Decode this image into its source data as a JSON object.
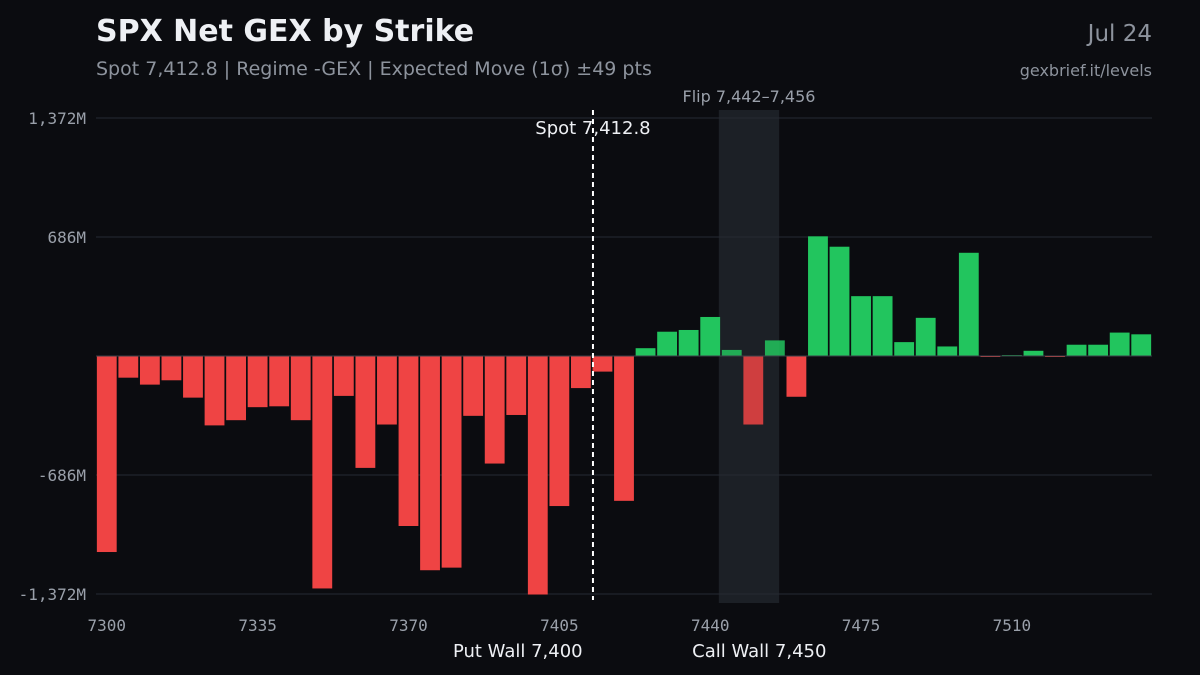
{
  "header": {
    "title": "SPX Net GEX by Strike",
    "subtitle": "Spot 7,412.8 | Regime -GEX | Expected Move (1σ) ±49 pts",
    "date": "Jul 24",
    "source": "gexbrief.it/levels"
  },
  "colors": {
    "positive": "#22c55e",
    "negative": "#ef4444",
    "grid": "#262a33",
    "flip_band": "#1c2026",
    "text": "#9aa0aa"
  },
  "chart_data": {
    "type": "bar",
    "title": "SPX Net GEX by Strike",
    "xlabel": "",
    "ylabel": "",
    "x_ticks": [
      "7300",
      "7335",
      "7370",
      "7405",
      "7440",
      "7475",
      "7510"
    ],
    "y_ticks": [
      "1,372M",
      "686M",
      "-686M",
      "-1,372M"
    ],
    "ylim": [
      -1372,
      1372
    ],
    "xlim": [
      7297.5,
      7542.5
    ],
    "strikes": [
      7300,
      7305,
      7310,
      7315,
      7320,
      7325,
      7330,
      7335,
      7340,
      7345,
      7350,
      7355,
      7360,
      7365,
      7370,
      7375,
      7380,
      7385,
      7390,
      7395,
      7400,
      7405,
      7410,
      7415,
      7420,
      7425,
      7430,
      7435,
      7440,
      7445,
      7450,
      7455,
      7460,
      7465,
      7470,
      7475,
      7480,
      7485,
      7490,
      7495,
      7500,
      7505,
      7510,
      7515,
      7520,
      7525,
      7530,
      7535,
      7540
    ],
    "values": [
      -1130,
      -125,
      -165,
      -140,
      -240,
      -400,
      -370,
      -295,
      -290,
      -370,
      -1340,
      -230,
      -645,
      -395,
      -980,
      -1235,
      -1220,
      -345,
      -620,
      -340,
      -1375,
      -865,
      -185,
      -90,
      -835,
      45,
      140,
      150,
      225,
      35,
      -395,
      90,
      -235,
      690,
      630,
      345,
      345,
      80,
      220,
      55,
      595,
      -5,
      5,
      30,
      -5,
      65,
      65,
      135,
      125
    ],
    "spot": {
      "value": 7412.8,
      "label": "Spot 7,412.8"
    },
    "flip": {
      "range": [
        7442,
        7456
      ],
      "label": "Flip 7,442–7,456"
    },
    "put_wall": {
      "value": 7400,
      "label": "Put Wall 7,400"
    },
    "call_wall": {
      "value": 7450,
      "label": "Call Wall 7,450"
    },
    "grid": true
  }
}
